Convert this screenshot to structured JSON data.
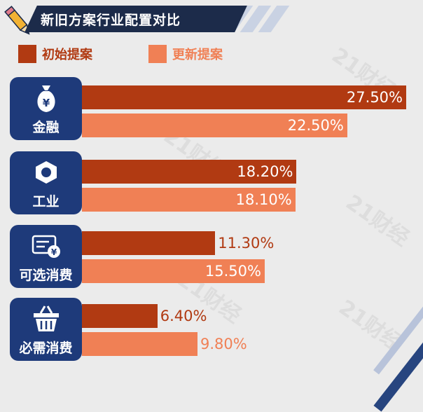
{
  "title": "新旧方案行业配置对比",
  "legend": [
    {
      "label": "初始提案",
      "color": "#b13a12"
    },
    {
      "label": "更新提案",
      "color": "#f08055"
    }
  ],
  "watermark": "21财经",
  "categories": [
    {
      "label": "金融",
      "icon": "money-bag-icon"
    },
    {
      "label": "工业",
      "icon": "hex-nut-icon"
    },
    {
      "label": "可选消费",
      "icon": "card-coin-icon"
    },
    {
      "label": "必需消费",
      "icon": "basket-icon"
    }
  ],
  "chart_data": {
    "type": "bar",
    "orientation": "horizontal",
    "title": "新旧方案行业配置对比",
    "categories": [
      "金融",
      "工业",
      "可选消费",
      "必需消费"
    ],
    "series": [
      {
        "name": "初始提案",
        "values": [
          27.5,
          18.2,
          11.3,
          6.4
        ],
        "labels": [
          "27.50%",
          "18.20%",
          "11.30%",
          "6.40%"
        ],
        "color": "#b13a12"
      },
      {
        "name": "更新提案",
        "values": [
          22.5,
          18.1,
          15.5,
          9.8
        ],
        "labels": [
          "22.50%",
          "18.10%",
          "15.50%",
          "9.80%"
        ],
        "color": "#f08055"
      }
    ],
    "xlim": [
      0,
      28
    ],
    "grid": false,
    "legend_position": "top-left"
  }
}
